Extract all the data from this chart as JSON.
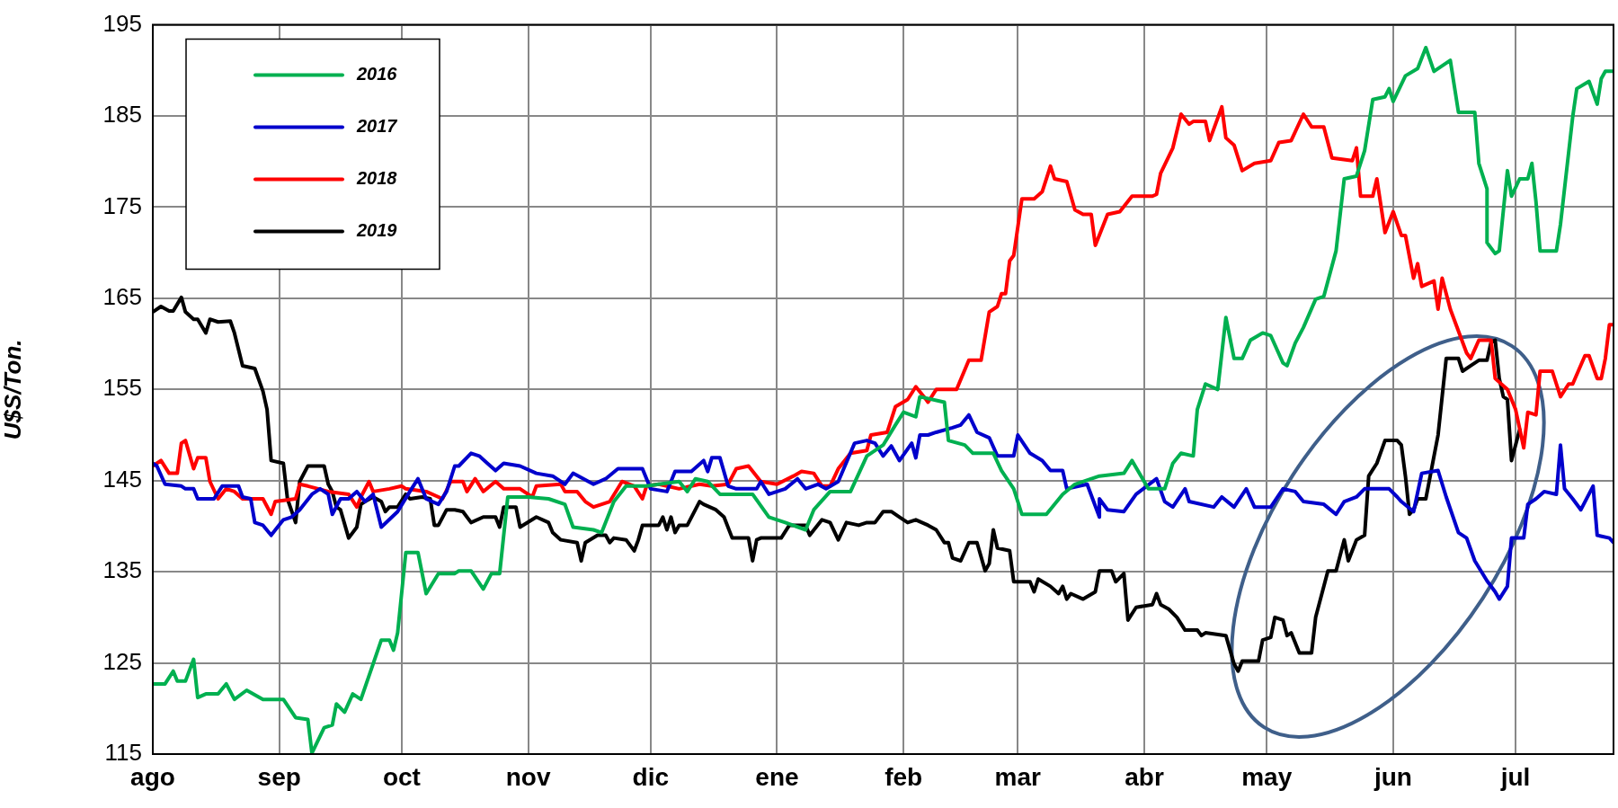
{
  "chart_data": {
    "type": "line",
    "ylabel": "U$S/Ton.",
    "xlim": [
      "2018-08-01",
      "2019-07-25"
    ],
    "ylim": [
      115,
      195
    ],
    "xticks": [
      {
        "value": "2018-08-01",
        "label": "ago"
      },
      {
        "value": "2018-09-01",
        "label": "sep"
      },
      {
        "value": "2018-10-01",
        "label": "oct"
      },
      {
        "value": "2018-11-01",
        "label": "nov"
      },
      {
        "value": "2018-12-01",
        "label": "dic"
      },
      {
        "value": "2019-01-01",
        "label": "ene"
      },
      {
        "value": "2019-02-01",
        "label": "feb"
      },
      {
        "value": "2019-03-01",
        "label": "mar"
      },
      {
        "value": "2019-04-01",
        "label": "abr"
      },
      {
        "value": "2019-05-01",
        "label": "may"
      },
      {
        "value": "2019-06-01",
        "label": "jun"
      },
      {
        "value": "2019-07-01",
        "label": "jul"
      }
    ],
    "yticks": [
      115,
      125,
      135,
      145,
      155,
      165,
      175,
      185,
      195
    ],
    "grid": true,
    "legend": "top left",
    "marker": "none",
    "line_style": "solid",
    "series": [
      {
        "name": "2016",
        "color": "#00b050",
        "x": [
          "2018-08-01",
          "2018-08-04",
          "2018-08-06",
          "2018-08-07",
          "2018-08-09",
          "2018-08-11",
          "2018-08-12",
          "2018-08-14",
          "2018-08-17",
          "2018-08-19",
          "2018-08-21",
          "2018-08-24",
          "2018-08-28",
          "2018-09-02",
          "2018-09-05",
          "2018-09-08",
          "2018-09-09",
          "2018-09-12",
          "2018-09-14",
          "2018-09-15",
          "2018-09-17",
          "2018-09-19",
          "2018-09-21",
          "2018-09-24",
          "2018-09-26",
          "2018-09-28",
          "2018-09-29",
          "2018-09-30",
          "2018-10-02",
          "2018-10-05",
          "2018-10-07",
          "2018-10-10",
          "2018-10-14",
          "2018-10-15",
          "2018-10-18",
          "2018-10-21",
          "2018-10-23",
          "2018-10-25",
          "2018-10-27",
          "2018-11-01",
          "2018-11-06",
          "2018-11-10",
          "2018-11-12",
          "2018-11-17",
          "2018-11-19",
          "2018-11-22",
          "2018-11-25",
          "2018-11-30",
          "2018-12-03",
          "2018-12-08",
          "2018-12-10",
          "2018-12-12",
          "2018-12-15",
          "2018-12-18",
          "2018-12-26",
          "2018-12-30",
          "2019-01-03",
          "2019-01-08",
          "2019-01-10",
          "2019-01-14",
          "2019-01-19",
          "2019-01-23",
          "2019-01-27",
          "2019-01-30",
          "2019-02-01",
          "2019-02-04",
          "2019-02-05",
          "2019-02-11",
          "2019-02-12",
          "2019-02-16",
          "2019-02-18",
          "2019-02-23",
          "2019-02-25",
          "2019-02-28",
          "2019-03-02",
          "2019-03-08",
          "2019-03-12",
          "2019-03-15",
          "2019-03-21",
          "2019-03-27",
          "2019-03-29",
          "2019-04-02",
          "2019-04-06",
          "2019-04-08",
          "2019-04-10",
          "2019-04-13",
          "2019-04-14",
          "2019-04-16",
          "2019-04-19",
          "2019-04-21",
          "2019-04-23",
          "2019-04-25",
          "2019-04-27",
          "2019-04-30",
          "2019-05-02",
          "2019-05-05",
          "2019-05-06",
          "2019-05-08",
          "2019-05-10",
          "2019-05-13",
          "2019-05-15",
          "2019-05-18",
          "2019-05-20",
          "2019-05-23",
          "2019-05-25",
          "2019-05-27",
          "2019-05-30",
          "2019-05-31",
          "2019-06-01",
          "2019-06-04",
          "2019-06-07",
          "2019-06-09",
          "2019-06-11",
          "2019-06-15",
          "2019-06-17",
          "2019-06-21",
          "2019-06-22",
          "2019-06-24",
          "2019-06-24",
          "2019-06-26",
          "2019-06-27",
          "2019-06-29",
          "2019-06-30",
          "2019-07-02",
          "2019-07-04",
          "2019-07-05",
          "2019-07-06",
          "2019-07-07",
          "2019-07-11",
          "2019-07-12",
          "2019-07-15",
          "2019-07-16",
          "2019-07-19",
          "2019-07-21",
          "2019-07-22",
          "2019-07-23",
          "2019-07-25"
        ],
        "values": [
          122.7,
          122.7,
          124.1,
          123,
          123,
          125.4,
          121.2,
          121.6,
          121.6,
          122.7,
          121,
          122,
          121,
          121,
          119,
          118.8,
          115.1,
          117.9,
          118.2,
          120.5,
          119.6,
          121.6,
          121,
          124.9,
          127.5,
          127.5,
          126.4,
          128.3,
          137.1,
          137.1,
          132.6,
          134.8,
          134.8,
          135.1,
          135.1,
          133.1,
          134.8,
          134.8,
          143.2,
          143.2,
          143,
          142.4,
          139.9,
          139.6,
          139.3,
          142.7,
          144.4,
          144.4,
          144.6,
          144.9,
          143.8,
          145.2,
          144.9,
          143.5,
          143.5,
          141,
          140.4,
          139.6,
          141.8,
          143.8,
          143.8,
          147.7,
          148.9,
          151.1,
          152.5,
          152,
          154.2,
          153.6,
          149.4,
          148.9,
          148,
          148,
          146.1,
          144.1,
          141.3,
          141.3,
          143.5,
          144.6,
          145.5,
          145.8,
          147.2,
          144.1,
          144.1,
          146.9,
          148,
          147.7,
          152.8,
          155.6,
          155,
          162.9,
          158.4,
          158.4,
          160.4,
          161.2,
          160.9,
          157.9,
          157.6,
          160.1,
          161.8,
          164.9,
          165.2,
          170.2,
          178.1,
          178.4,
          181.2,
          186.8,
          187.1,
          188,
          186.6,
          189.4,
          190.2,
          192.5,
          189.9,
          191.1,
          185.4,
          185.4,
          179.8,
          177,
          171.1,
          169.9,
          170.2,
          179,
          176.2,
          178.1,
          178.1,
          179.8,
          175.6,
          170.2,
          170.2,
          173.1,
          184.9,
          188,
          188.8,
          186.3,
          189.1,
          189.9,
          189.9
        ]
      },
      {
        "name": "2017",
        "color": "#0000cc",
        "x": [
          "2018-08-01",
          "2018-08-02",
          "2018-08-04",
          "2018-08-08",
          "2018-08-09",
          "2018-08-11",
          "2018-08-12",
          "2018-08-16",
          "2018-08-18",
          "2018-08-22",
          "2018-08-23",
          "2018-08-25",
          "2018-08-26",
          "2018-08-28",
          "2018-08-30",
          "2018-09-02",
          "2018-09-04",
          "2018-09-06",
          "2018-09-09",
          "2018-09-11",
          "2018-09-13",
          "2018-09-14",
          "2018-09-16",
          "2018-09-18",
          "2018-09-20",
          "2018-09-22",
          "2018-09-24",
          "2018-09-26",
          "2018-09-30",
          "2018-10-03",
          "2018-10-05",
          "2018-10-07",
          "2018-10-10",
          "2018-10-12",
          "2018-10-14",
          "2018-10-15",
          "2018-10-18",
          "2018-10-20",
          "2018-10-22",
          "2018-10-24",
          "2018-10-26",
          "2018-10-30",
          "2018-11-03",
          "2018-11-07",
          "2018-11-10",
          "2018-11-12",
          "2018-11-17",
          "2018-11-20",
          "2018-11-23",
          "2018-11-29",
          "2018-12-01",
          "2018-12-05",
          "2018-12-07",
          "2018-12-11",
          "2018-12-14",
          "2018-12-15",
          "2018-12-16",
          "2018-12-18",
          "2018-12-20",
          "2018-12-22",
          "2018-12-27",
          "2018-12-28",
          "2018-12-30",
          "2019-01-03",
          "2019-01-06",
          "2019-01-08",
          "2019-01-11",
          "2019-01-13",
          "2019-01-16",
          "2019-01-20",
          "2019-01-23",
          "2019-01-25",
          "2019-01-27",
          "2019-01-29",
          "2019-01-31",
          "2019-02-03",
          "2019-02-04",
          "2019-02-05",
          "2019-02-07",
          "2019-02-09",
          "2019-02-13",
          "2019-02-15",
          "2019-02-17",
          "2019-02-19",
          "2019-02-22",
          "2019-02-24",
          "2019-02-28",
          "2019-03-01",
          "2019-03-04",
          "2019-03-07",
          "2019-03-09",
          "2019-03-12",
          "2019-03-13",
          "2019-03-18",
          "2019-03-21",
          "2019-03-21",
          "2019-03-23",
          "2019-03-27",
          "2019-03-30",
          "2019-04-04",
          "2019-04-06",
          "2019-04-08",
          "2019-04-11",
          "2019-04-12",
          "2019-04-18",
          "2019-04-20",
          "2019-04-23",
          "2019-04-26",
          "2019-04-28",
          "2019-05-02",
          "2019-05-05",
          "2019-05-08",
          "2019-05-10",
          "2019-05-15",
          "2019-05-18",
          "2019-05-20",
          "2019-05-23",
          "2019-05-25",
          "2019-05-31",
          "2019-06-02",
          "2019-06-03",
          "2019-06-06",
          "2019-06-08",
          "2019-06-12",
          "2019-06-14",
          "2019-06-17",
          "2019-06-19",
          "2019-06-21",
          "2019-06-24",
          "2019-06-26",
          "2019-06-27",
          "2019-06-29",
          "2019-06-30",
          "2019-07-03",
          "2019-07-04",
          "2019-07-06",
          "2019-07-08",
          "2019-07-11",
          "2019-07-12",
          "2019-07-13",
          "2019-07-15",
          "2019-07-17",
          "2019-07-20",
          "2019-07-21",
          "2019-07-24",
          "2019-07-25"
        ],
        "values": [
          146.9,
          146.6,
          144.6,
          144.4,
          144.1,
          144.1,
          143,
          143,
          144.4,
          144.4,
          143.2,
          143,
          140.4,
          140.1,
          139,
          140.7,
          141,
          141.8,
          143.5,
          144.1,
          143.5,
          141.3,
          143,
          143,
          143.8,
          142.7,
          143.5,
          139.9,
          141.6,
          143.8,
          145.2,
          143,
          142.4,
          143.8,
          146.6,
          146.6,
          148,
          147.7,
          146.9,
          146.1,
          146.9,
          146.6,
          145.8,
          145.5,
          144.6,
          145.8,
          144.6,
          145.2,
          146.3,
          146.3,
          144.1,
          143.8,
          146,
          146,
          147.2,
          146,
          147.5,
          147.5,
          144.4,
          144.1,
          144.1,
          144.9,
          143.5,
          144.1,
          145.2,
          144.1,
          144.6,
          144.1,
          144.9,
          149.1,
          149.4,
          149.1,
          147.7,
          148.8,
          147.2,
          149.1,
          147.5,
          150,
          150,
          150.3,
          150.8,
          151.1,
          152.2,
          150.3,
          149.7,
          147.7,
          147.7,
          150,
          148,
          147.2,
          146.1,
          146.1,
          144.1,
          144.6,
          141,
          143,
          141.8,
          141.6,
          143.5,
          145.2,
          142.7,
          142.1,
          144.1,
          142.7,
          142.1,
          143.2,
          142.1,
          144.1,
          142.1,
          142.1,
          144.1,
          143.8,
          142.7,
          142.4,
          141.3,
          142.7,
          143.2,
          144.1,
          144.1,
          143.2,
          142.7,
          141.6,
          145.8,
          146.1,
          143.2,
          139.3,
          138.7,
          136.2,
          134,
          132.8,
          132,
          133.4,
          138.7,
          138.7,
          142.4,
          143,
          143.8,
          143.5,
          148.9,
          144.1,
          143,
          141.8,
          144.4,
          139,
          138.7,
          138.2
        ]
      },
      {
        "name": "2018",
        "color": "#ff0000",
        "x": [
          "2018-08-01",
          "2018-08-03",
          "2018-08-05",
          "2018-08-07",
          "2018-08-08",
          "2018-08-09",
          "2018-08-11",
          "2018-08-12",
          "2018-08-14",
          "2018-08-15",
          "2018-08-17",
          "2018-08-19",
          "2018-08-21",
          "2018-08-23",
          "2018-08-28",
          "2018-08-30",
          "2018-08-31",
          "2018-09-05",
          "2018-09-06",
          "2018-09-08",
          "2018-09-13",
          "2018-09-18",
          "2018-09-20",
          "2018-09-21",
          "2018-09-23",
          "2018-09-24",
          "2018-09-28",
          "2018-10-01",
          "2018-10-02",
          "2018-10-07",
          "2018-10-11",
          "2018-10-13",
          "2018-10-16",
          "2018-10-17",
          "2018-10-19",
          "2018-10-21",
          "2018-10-24",
          "2018-10-26",
          "2018-10-30",
          "2018-11-02",
          "2018-11-03",
          "2018-11-09",
          "2018-11-10",
          "2018-11-13",
          "2018-11-15",
          "2018-11-17",
          "2018-11-21",
          "2018-11-24",
          "2018-11-27",
          "2018-11-29",
          "2018-11-30",
          "2018-12-03",
          "2018-12-05",
          "2018-12-08",
          "2018-12-13",
          "2018-12-16",
          "2018-12-20",
          "2018-12-22",
          "2018-12-25",
          "2018-12-28",
          "2019-01-01",
          "2019-01-05",
          "2019-01-07",
          "2019-01-10",
          "2019-01-12",
          "2019-01-14",
          "2019-01-16",
          "2019-01-19",
          "2019-01-23",
          "2019-01-24",
          "2019-01-28",
          "2019-01-30",
          "2019-02-02",
          "2019-02-04",
          "2019-02-06",
          "2019-02-07",
          "2019-02-09",
          "2019-02-14",
          "2019-02-17",
          "2019-02-20",
          "2019-02-22",
          "2019-02-24",
          "2019-02-25",
          "2019-02-26",
          "2019-02-27",
          "2019-02-28",
          "2019-03-02",
          "2019-03-05",
          "2019-03-07",
          "2019-03-09",
          "2019-03-10",
          "2019-03-13",
          "2019-03-15",
          "2019-03-17",
          "2019-03-19",
          "2019-03-20",
          "2019-03-23",
          "2019-03-26",
          "2019-03-29",
          "2019-04-03",
          "2019-04-04",
          "2019-04-05",
          "2019-04-08",
          "2019-04-10",
          "2019-04-12",
          "2019-04-13",
          "2019-04-16",
          "2019-04-17",
          "2019-04-20",
          "2019-04-21",
          "2019-04-23",
          "2019-04-25",
          "2019-04-28",
          "2019-05-02",
          "2019-05-04",
          "2019-05-07",
          "2019-05-10",
          "2019-05-12",
          "2019-05-15",
          "2019-05-17",
          "2019-05-22",
          "2019-05-23",
          "2019-05-24",
          "2019-05-27",
          "2019-05-28",
          "2019-05-30",
          "2019-06-01",
          "2019-06-03",
          "2019-06-04",
          "2019-06-06",
          "2019-06-07",
          "2019-06-08",
          "2019-06-11",
          "2019-06-12",
          "2019-06-13",
          "2019-06-15",
          "2019-06-19",
          "2019-06-20",
          "2019-06-22",
          "2019-06-25",
          "2019-06-26",
          "2019-06-29",
          "2019-07-01",
          "2019-07-03",
          "2019-07-04",
          "2019-07-06",
          "2019-07-07",
          "2019-07-10",
          "2019-07-12",
          "2019-07-14",
          "2019-07-15",
          "2019-07-18",
          "2019-07-19",
          "2019-07-21",
          "2019-07-22",
          "2019-07-23",
          "2019-07-24",
          "2019-07-25"
        ],
        "values": [
          146.6,
          147.2,
          145.8,
          145.8,
          149.1,
          149.4,
          146.3,
          147.5,
          147.5,
          144.9,
          143,
          144.1,
          143.8,
          143,
          143,
          141.3,
          142.7,
          143,
          144.6,
          144.4,
          143.8,
          143.5,
          142.1,
          143.2,
          144.9,
          143.8,
          144.1,
          144.4,
          144.1,
          143.8,
          143,
          144.9,
          144.9,
          143.8,
          145.2,
          143.8,
          144.9,
          144.1,
          144.1,
          143.2,
          144.4,
          144.6,
          143.8,
          143.8,
          142.7,
          142.1,
          142.7,
          144.9,
          144.4,
          143,
          144.4,
          144.6,
          144.4,
          144.1,
          144.6,
          144.4,
          144.6,
          146.3,
          146.6,
          144.9,
          144.6,
          145.5,
          146,
          145.8,
          144.4,
          144.4,
          146.3,
          148,
          148.3,
          150,
          150.3,
          153.1,
          153.9,
          155.3,
          154.2,
          153.6,
          155,
          155,
          158.2,
          158.2,
          163.5,
          164.1,
          165.5,
          165.5,
          169.1,
          169.7,
          175.9,
          175.9,
          176.7,
          179.5,
          178.1,
          177.8,
          174.7,
          174.2,
          174.2,
          170.8,
          174.2,
          174.5,
          176.2,
          176.2,
          176.4,
          178.7,
          181.5,
          185.2,
          184.1,
          184.4,
          184.4,
          182.3,
          186,
          182.6,
          181.8,
          179,
          179.8,
          180.1,
          182.1,
          182.3,
          185.2,
          183.8,
          183.8,
          180.4,
          180.1,
          181.5,
          176.2,
          176.2,
          178.1,
          172.2,
          174.5,
          171.9,
          171.9,
          167.2,
          168.8,
          166.3,
          166.9,
          163.8,
          167.2,
          163.8,
          159,
          158.4,
          160.4,
          160.4,
          156.2,
          155,
          152.8,
          148.6,
          152.5,
          152.2,
          157,
          157,
          154.2,
          155.6,
          155.6,
          158.7,
          158.7,
          156.2,
          156.2,
          158.4,
          162.1,
          162.1
        ]
      },
      {
        "name": "2019",
        "color": "#000000",
        "x": [
          "2018-08-01",
          "2018-08-03",
          "2018-08-05",
          "2018-08-06",
          "2018-08-08",
          "2018-08-09",
          "2018-08-11",
          "2018-08-12",
          "2018-08-14",
          "2018-08-15",
          "2018-08-17",
          "2018-08-20",
          "2018-08-21",
          "2018-08-23",
          "2018-08-26",
          "2018-08-28",
          "2018-08-29",
          "2018-08-30",
          "2018-09-02",
          "2018-09-03",
          "2018-09-05",
          "2018-09-06",
          "2018-09-08",
          "2018-09-11",
          "2018-09-12",
          "2018-09-13",
          "2018-09-14",
          "2018-09-15",
          "2018-09-16",
          "2018-09-18",
          "2018-09-20",
          "2018-09-21",
          "2018-09-22",
          "2018-09-24",
          "2018-09-26",
          "2018-09-27",
          "2018-09-28",
          "2018-09-30",
          "2018-10-02",
          "2018-10-03",
          "2018-10-06",
          "2018-10-08",
          "2018-10-09",
          "2018-10-10",
          "2018-10-12",
          "2018-10-14",
          "2018-10-16",
          "2018-10-18",
          "2018-10-21",
          "2018-10-24",
          "2018-10-25",
          "2018-10-26",
          "2018-10-29",
          "2018-10-30",
          "2018-11-03",
          "2018-11-06",
          "2018-11-07",
          "2018-11-09",
          "2018-11-13",
          "2018-11-14",
          "2018-11-15",
          "2018-11-18",
          "2018-11-20",
          "2018-11-21",
          "2018-11-22",
          "2018-11-25",
          "2018-11-27",
          "2018-11-28",
          "2018-11-29",
          "2018-12-03",
          "2018-12-04",
          "2018-12-05",
          "2018-12-06",
          "2018-12-07",
          "2018-12-08",
          "2018-12-10",
          "2018-12-13",
          "2018-12-14",
          "2018-12-17",
          "2018-12-19",
          "2018-12-21",
          "2018-12-25",
          "2018-12-26",
          "2018-12-27",
          "2018-12-28",
          "2019-01-02",
          "2019-01-04",
          "2019-01-08",
          "2019-01-09",
          "2019-01-12",
          "2019-01-14",
          "2019-01-16",
          "2019-01-18",
          "2019-01-21",
          "2019-01-23",
          "2019-01-25",
          "2019-01-27",
          "2019-01-29",
          "2019-01-31",
          "2019-02-02",
          "2019-02-04",
          "2019-02-07",
          "2019-02-09",
          "2019-02-11",
          "2019-02-12",
          "2019-02-13",
          "2019-02-15",
          "2019-02-17",
          "2019-02-19",
          "2019-02-21",
          "2019-02-22",
          "2019-02-23",
          "2019-02-24",
          "2019-02-27",
          "2019-02-28",
          "2019-03-04",
          "2019-03-05",
          "2019-03-06",
          "2019-03-09",
          "2019-03-11",
          "2019-03-12",
          "2019-03-13",
          "2019-03-14",
          "2019-03-17",
          "2019-03-20",
          "2019-03-21",
          "2019-03-24",
          "2019-03-25",
          "2019-03-27",
          "2019-03-28",
          "2019-03-30",
          "2019-04-03",
          "2019-04-04",
          "2019-04-05",
          "2019-04-07",
          "2019-04-09",
          "2019-04-11",
          "2019-04-14",
          "2019-04-15",
          "2019-04-16",
          "2019-04-21",
          "2019-04-23",
          "2019-04-24",
          "2019-04-25",
          "2019-04-29",
          "2019-04-30",
          "2019-05-02",
          "2019-05-03",
          "2019-05-05",
          "2019-05-06",
          "2019-05-07",
          "2019-05-09",
          "2019-05-12",
          "2019-05-13",
          "2019-05-16",
          "2019-05-18",
          "2019-05-20",
          "2019-05-21",
          "2019-05-23",
          "2019-05-25",
          "2019-05-26",
          "2019-05-28",
          "2019-05-30",
          "2019-06-02",
          "2019-06-03",
          "2019-06-04",
          "2019-06-05",
          "2019-06-06",
          "2019-06-07",
          "2019-06-09",
          "2019-06-12",
          "2019-06-14",
          "2019-06-17",
          "2019-06-18",
          "2019-06-20",
          "2019-06-22",
          "2019-06-24",
          "2019-06-25",
          "2019-06-26",
          "2019-06-27",
          "2019-06-28",
          "2019-06-29",
          "2019-06-30",
          "2019-07-02"
        ],
        "values": [
          163.5,
          164.1,
          163.6,
          163.6,
          165.1,
          163.5,
          162.7,
          162.7,
          161.2,
          162.7,
          162.4,
          162.5,
          161.2,
          157.6,
          157.3,
          154.8,
          152.8,
          147.2,
          146.9,
          143,
          140.4,
          144.9,
          146.6,
          146.6,
          146.6,
          144.6,
          143.8,
          142.1,
          141.8,
          138.7,
          139.9,
          142.4,
          142.7,
          143.2,
          142.7,
          141.6,
          142.1,
          142.1,
          143.5,
          143,
          143.2,
          143,
          140.1,
          140.1,
          141.8,
          141.8,
          141.6,
          140.4,
          141,
          141,
          139.9,
          142.1,
          142.1,
          139.9,
          141,
          140.4,
          139.3,
          138.5,
          138.2,
          136.2,
          138.2,
          139,
          139,
          138.2,
          138.7,
          138.5,
          137.3,
          138.5,
          140.1,
          140.1,
          141,
          139.6,
          141,
          139.3,
          140.1,
          140.1,
          142.7,
          142.4,
          141.8,
          141,
          138.7,
          138.7,
          136.2,
          138.5,
          138.7,
          138.7,
          140.1,
          140.1,
          139,
          140.7,
          140.4,
          138.5,
          140.4,
          140.1,
          140.4,
          140.4,
          141.6,
          141.6,
          141,
          140.4,
          140.7,
          140.1,
          139.6,
          138.2,
          138.2,
          136.5,
          136.2,
          138.2,
          138.2,
          135.1,
          135.9,
          139.6,
          137.6,
          137.3,
          133.9,
          133.9,
          132.8,
          134.2,
          133.4,
          132.6,
          133.4,
          132,
          132.6,
          132,
          132.8,
          135.1,
          135.1,
          133.9,
          134.8,
          129.7,
          131.1,
          131.4,
          132.6,
          131.4,
          130.9,
          130,
          128.6,
          128.6,
          128,
          128.3,
          128,
          124.9,
          124.1,
          125.2,
          125.2,
          127.5,
          127.8,
          130,
          129.7,
          128,
          128.3,
          126.1,
          126.1,
          130,
          135.1,
          135.1,
          138.5,
          136.2,
          138.5,
          139,
          145.5,
          146.9,
          149.4,
          149.4,
          148.9,
          145.5,
          141.3,
          141.8,
          143,
          143,
          150,
          158.4,
          158.4,
          157,
          157.6,
          158.2,
          158.2,
          160.2,
          160.4,
          156.2,
          154.2,
          153.9,
          147.2,
          150.6
        ]
      }
    ]
  }
}
